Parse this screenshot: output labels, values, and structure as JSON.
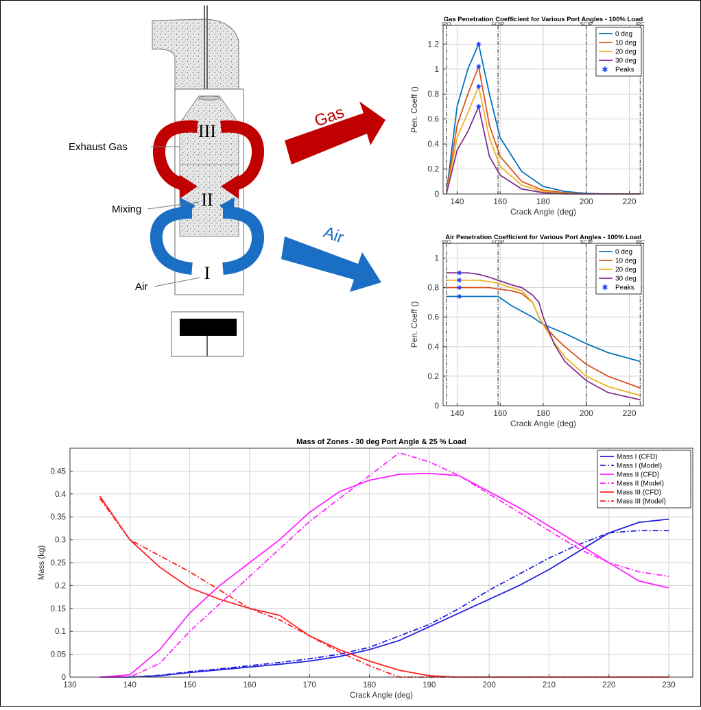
{
  "diagram": {
    "labels": {
      "exhaust": "Exhaust Gas",
      "mixing": "Mixing",
      "air": "Air",
      "zone3": "III",
      "zone2": "II",
      "zone1": "I",
      "gas_arrow": "Gas",
      "air_arrow": "Air"
    }
  },
  "chart_data": [
    {
      "type": "line",
      "title": "Gas Penetration Coefficient for Various Port Angles - 100% Load",
      "x_label": "Crack Angle (deg)",
      "y_label": "Pen. Coeff ()",
      "xlim": [
        133.5,
        226.5
      ],
      "ylim": [
        0,
        1.35
      ],
      "xticks": [
        140,
        160,
        180,
        200,
        220
      ],
      "yticks": [
        0,
        0.2,
        0.4,
        0.6,
        0.8,
        1,
        1.2
      ],
      "grid": true,
      "legend": "upper right",
      "markers": [
        {
          "label": "IPO",
          "x": 135
        },
        {
          "label": "FOIP",
          "x": 159
        },
        {
          "label": "SCIP",
          "x": 200
        },
        {
          "label": "IPC",
          "x": 225
        }
      ],
      "x": [
        135,
        140,
        145,
        150,
        155,
        160,
        170,
        180,
        190,
        200,
        210,
        225
      ],
      "series": [
        {
          "name": "0 deg",
          "color": "#0072bd",
          "values": [
            0,
            0.7,
            1.0,
            1.2,
            0.8,
            0.45,
            0.18,
            0.06,
            0.02,
            0.005,
            0,
            0
          ]
        },
        {
          "name": "10 deg",
          "color": "#d95319",
          "values": [
            0,
            0.55,
            0.8,
            1.02,
            0.55,
            0.3,
            0.1,
            0.03,
            0.01,
            0,
            0,
            0
          ]
        },
        {
          "name": "20 deg",
          "color": "#edb120",
          "values": [
            0,
            0.45,
            0.65,
            0.86,
            0.45,
            0.22,
            0.07,
            0.02,
            0.005,
            0,
            0,
            0
          ]
        },
        {
          "name": "30 deg",
          "color": "#7e2f8e",
          "values": [
            0,
            0.35,
            0.5,
            0.7,
            0.3,
            0.15,
            0.04,
            0.01,
            0,
            0,
            0,
            0
          ]
        },
        {
          "name": "Peaks",
          "color": "#1f3fff",
          "marker": "asterisk",
          "x": [
            150,
            150,
            150,
            150
          ],
          "values": [
            1.2,
            1.02,
            0.86,
            0.7
          ]
        }
      ]
    },
    {
      "type": "line",
      "title": "Air Penetration Coefficient for Various Port Angles - 100% Load",
      "x_label": "Crack Angle (deg)",
      "y_label": "Pen. Coeff ()",
      "xlim": [
        133.5,
        226.5
      ],
      "ylim": [
        0,
        1.1
      ],
      "xticks": [
        140,
        160,
        180,
        200,
        220
      ],
      "yticks": [
        0,
        0.2,
        0.4,
        0.6,
        0.8,
        1
      ],
      "grid": true,
      "legend": "upper right",
      "markers": [
        {
          "label": "IPO",
          "x": 135
        },
        {
          "label": "FOIP",
          "x": 159
        },
        {
          "label": "SCIP",
          "x": 200
        },
        {
          "label": "IPC",
          "x": 225
        }
      ],
      "x": [
        135,
        140,
        145,
        150,
        155,
        159,
        165,
        170,
        175,
        178,
        180,
        185,
        190,
        200,
        210,
        225
      ],
      "series": [
        {
          "name": "0 deg",
          "color": "#0072bd",
          "values": [
            0.74,
            0.74,
            0.74,
            0.74,
            0.74,
            0.74,
            0.68,
            0.64,
            0.6,
            0.57,
            0.55,
            0.52,
            0.49,
            0.42,
            0.36,
            0.3
          ]
        },
        {
          "name": "10 deg",
          "color": "#d95319",
          "values": [
            0.8,
            0.8,
            0.8,
            0.8,
            0.8,
            0.79,
            0.78,
            0.76,
            0.7,
            0.6,
            0.55,
            0.47,
            0.4,
            0.28,
            0.2,
            0.12
          ]
        },
        {
          "name": "20 deg",
          "color": "#edb120",
          "values": [
            0.85,
            0.85,
            0.85,
            0.85,
            0.84,
            0.83,
            0.8,
            0.78,
            0.7,
            0.6,
            0.55,
            0.43,
            0.33,
            0.2,
            0.13,
            0.07
          ]
        },
        {
          "name": "30 deg",
          "color": "#7e2f8e",
          "values": [
            0.9,
            0.9,
            0.9,
            0.89,
            0.87,
            0.85,
            0.82,
            0.8,
            0.75,
            0.7,
            0.6,
            0.42,
            0.3,
            0.17,
            0.09,
            0.04
          ]
        },
        {
          "name": "Peaks",
          "color": "#1f3fff",
          "marker": "asterisk",
          "x": [
            141,
            141,
            141,
            141
          ],
          "values": [
            0.74,
            0.8,
            0.85,
            0.9
          ]
        }
      ]
    },
    {
      "type": "line",
      "title": "Mass of Zones - 30 deg Port Angle & 25 % Load",
      "x_label": "Crack Angle (deg)",
      "y_label": "Mass (kg)",
      "xlim": [
        130,
        234
      ],
      "ylim": [
        0,
        0.5
      ],
      "xticks": [
        130,
        140,
        150,
        160,
        170,
        180,
        190,
        200,
        210,
        220,
        230
      ],
      "yticks": [
        0,
        0.05,
        0.1,
        0.15,
        0.2,
        0.25,
        0.3,
        0.35,
        0.4,
        0.45
      ],
      "grid": true,
      "legend": "upper right",
      "x": [
        135,
        140,
        145,
        150,
        155,
        160,
        165,
        170,
        175,
        180,
        185,
        190,
        195,
        200,
        205,
        210,
        215,
        220,
        225,
        230
      ],
      "series": [
        {
          "name": "Mass I (CFD)",
          "color": "#2020e0",
          "style": "solid",
          "values": [
            0,
            0,
            0.003,
            0.01,
            0.016,
            0.022,
            0.028,
            0.035,
            0.045,
            0.06,
            0.08,
            0.11,
            0.14,
            0.17,
            0.2,
            0.235,
            0.275,
            0.315,
            0.338,
            0.345
          ]
        },
        {
          "name": "Mass I (Model)",
          "color": "#2020e0",
          "style": "dashdot",
          "values": [
            0,
            0,
            0.004,
            0.012,
            0.018,
            0.025,
            0.032,
            0.04,
            0.05,
            0.065,
            0.09,
            0.115,
            0.15,
            0.19,
            0.225,
            0.26,
            0.29,
            0.315,
            0.32,
            0.32
          ]
        },
        {
          "name": "Mass II (CFD)",
          "color": "#ff20ff",
          "style": "solid",
          "values": [
            0,
            0.005,
            0.06,
            0.14,
            0.2,
            0.25,
            0.3,
            0.36,
            0.405,
            0.43,
            0.443,
            0.445,
            0.44,
            0.405,
            0.37,
            0.33,
            0.29,
            0.25,
            0.21,
            0.195
          ]
        },
        {
          "name": "Mass II (Model)",
          "color": "#ff20ff",
          "style": "dashdot",
          "values": [
            0,
            0,
            0.03,
            0.1,
            0.16,
            0.22,
            0.28,
            0.34,
            0.39,
            0.44,
            0.49,
            0.47,
            0.44,
            0.4,
            0.36,
            0.32,
            0.28,
            0.25,
            0.23,
            0.22
          ]
        },
        {
          "name": "Mass III (CFD)",
          "color": "#ff2020",
          "style": "solid",
          "values": [
            0.395,
            0.3,
            0.24,
            0.195,
            0.17,
            0.15,
            0.135,
            0.09,
            0.06,
            0.035,
            0.015,
            0.003,
            0,
            0,
            0,
            0,
            0,
            0,
            0,
            0
          ]
        },
        {
          "name": "Mass III (Model)",
          "color": "#ff2020",
          "style": "dashdot",
          "values": [
            0.39,
            0.3,
            0.265,
            0.23,
            0.19,
            0.15,
            0.125,
            0.09,
            0.055,
            0.025,
            0,
            0,
            0,
            0,
            0,
            0,
            0,
            0,
            0,
            0
          ]
        }
      ]
    }
  ]
}
